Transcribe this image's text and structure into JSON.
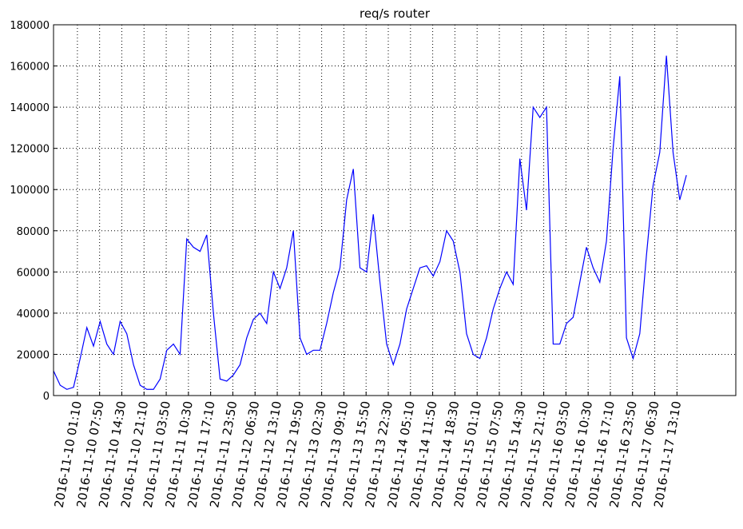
{
  "chart_data": {
    "type": "line",
    "title": "req/s router",
    "color": "#0000ff",
    "grid": true,
    "xlim": [
      "2016-11-09 18:00",
      "2016-11-18 06:50"
    ],
    "xticks": [
      "2016-11-10 01:10",
      "2016-11-10 07:50",
      "2016-11-10 14:30",
      "2016-11-10 21:10",
      "2016-11-11 03:50",
      "2016-11-11 10:30",
      "2016-11-11 17:10",
      "2016-11-11 23:50",
      "2016-11-12 06:30",
      "2016-11-12 13:10",
      "2016-11-12 19:50",
      "2016-11-13 02:30",
      "2016-11-13 09:10",
      "2016-11-13 15:50",
      "2016-11-13 22:30",
      "2016-11-14 05:10",
      "2016-11-14 11:50",
      "2016-11-14 18:30",
      "2016-11-15 01:10",
      "2016-11-15 07:50",
      "2016-11-15 14:30",
      "2016-11-15 21:10",
      "2016-11-16 03:50",
      "2016-11-16 10:30",
      "2016-11-16 17:10",
      "2016-11-16 23:50",
      "2016-11-17 06:30",
      "2016-11-17 13:10"
    ],
    "ylim": [
      0,
      180000
    ],
    "yticks": [
      0,
      20000,
      40000,
      60000,
      80000,
      100000,
      120000,
      140000,
      160000,
      180000
    ],
    "x": [
      "2016-11-09 18:00",
      "2016-11-09 20:00",
      "2016-11-09 22:00",
      "2016-11-10 00:00",
      "2016-11-10 02:00",
      "2016-11-10 04:00",
      "2016-11-10 06:00",
      "2016-11-10 08:00",
      "2016-11-10 10:00",
      "2016-11-10 12:00",
      "2016-11-10 14:00",
      "2016-11-10 16:00",
      "2016-11-10 18:00",
      "2016-11-10 20:00",
      "2016-11-10 22:00",
      "2016-11-11 00:00",
      "2016-11-11 02:00",
      "2016-11-11 04:00",
      "2016-11-11 06:00",
      "2016-11-11 08:00",
      "2016-11-11 10:00",
      "2016-11-11 12:00",
      "2016-11-11 14:00",
      "2016-11-11 16:00",
      "2016-11-11 18:00",
      "2016-11-11 20:00",
      "2016-11-11 22:00",
      "2016-11-12 00:00",
      "2016-11-12 02:00",
      "2016-11-12 04:00",
      "2016-11-12 06:00",
      "2016-11-12 08:00",
      "2016-11-12 10:00",
      "2016-11-12 12:00",
      "2016-11-12 14:00",
      "2016-11-12 16:00",
      "2016-11-12 18:00",
      "2016-11-12 20:00",
      "2016-11-12 22:00",
      "2016-11-13 00:00",
      "2016-11-13 02:00",
      "2016-11-13 04:00",
      "2016-11-13 06:00",
      "2016-11-13 08:00",
      "2016-11-13 10:00",
      "2016-11-13 12:00",
      "2016-11-13 14:00",
      "2016-11-13 16:00",
      "2016-11-13 18:00",
      "2016-11-13 20:00",
      "2016-11-13 22:00",
      "2016-11-14 00:00",
      "2016-11-14 02:00",
      "2016-11-14 04:00",
      "2016-11-14 06:00",
      "2016-11-14 08:00",
      "2016-11-14 10:00",
      "2016-11-14 12:00",
      "2016-11-14 14:00",
      "2016-11-14 16:00",
      "2016-11-14 18:00",
      "2016-11-14 20:00",
      "2016-11-14 22:00",
      "2016-11-15 00:00",
      "2016-11-15 02:00",
      "2016-11-15 04:00",
      "2016-11-15 06:00",
      "2016-11-15 08:00",
      "2016-11-15 10:00",
      "2016-11-15 12:00",
      "2016-11-15 14:00",
      "2016-11-15 16:00",
      "2016-11-15 18:00",
      "2016-11-15 20:00",
      "2016-11-15 22:00",
      "2016-11-16 00:00",
      "2016-11-16 02:00",
      "2016-11-16 04:00",
      "2016-11-16 06:00",
      "2016-11-16 08:00",
      "2016-11-16 10:00",
      "2016-11-16 12:00",
      "2016-11-16 14:00",
      "2016-11-16 16:00",
      "2016-11-16 18:00",
      "2016-11-16 20:00",
      "2016-11-16 22:00",
      "2016-11-17 00:00",
      "2016-11-17 02:00",
      "2016-11-17 04:00",
      "2016-11-17 06:00",
      "2016-11-17 08:00",
      "2016-11-17 10:00",
      "2016-11-17 12:00",
      "2016-11-17 14:00",
      "2016-11-17 16:00"
    ],
    "values": [
      12000,
      5000,
      3000,
      4000,
      18000,
      33000,
      24000,
      36000,
      25000,
      20000,
      36000,
      30000,
      15000,
      5000,
      3000,
      3000,
      8000,
      22000,
      25000,
      20000,
      76000,
      72000,
      70000,
      78000,
      40000,
      8000,
      7000,
      10000,
      15000,
      28000,
      37000,
      40000,
      35000,
      60000,
      52000,
      62000,
      80000,
      28000,
      20000,
      22000,
      22000,
      35000,
      50000,
      62000,
      95000,
      110000,
      62000,
      60000,
      88000,
      55000,
      25000,
      15000,
      25000,
      42000,
      52000,
      62000,
      63000,
      58000,
      65000,
      80000,
      75000,
      60000,
      30000,
      20000,
      18000,
      28000,
      42000,
      52000,
      60000,
      54000,
      115000,
      90000,
      140000,
      135000,
      140000,
      25000,
      25000,
      35000,
      38000,
      55000,
      72000,
      62000,
      55000,
      75000,
      120000,
      155000,
      28000,
      18000,
      30000,
      68000,
      102000,
      118000,
      165000,
      118000,
      95000,
      107000
    ]
  }
}
